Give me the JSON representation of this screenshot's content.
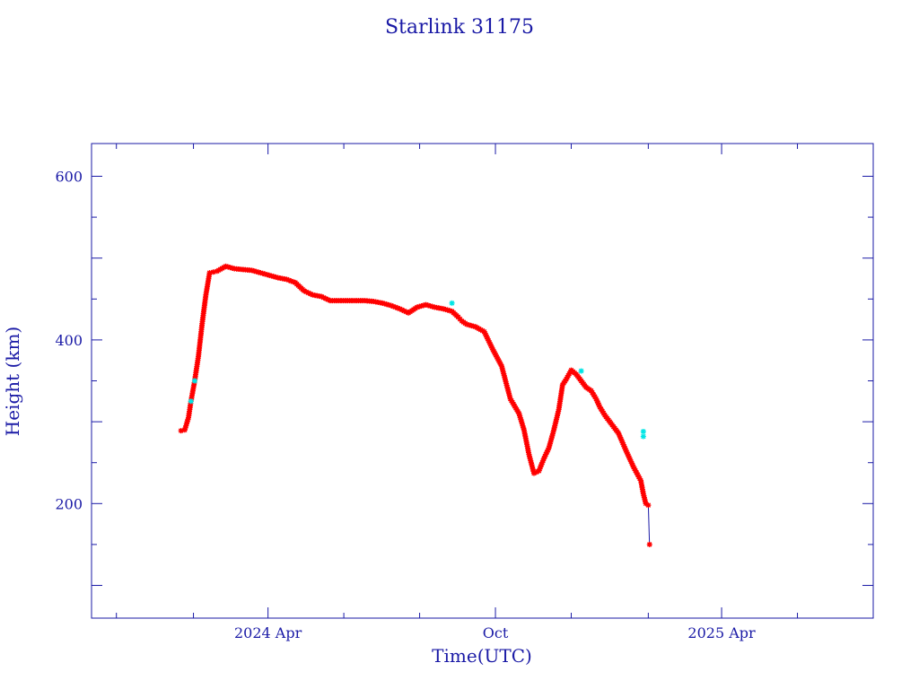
{
  "chart_data": {
    "type": "scatter",
    "title": "Starlink 31175",
    "xlabel": "Time(UTC)",
    "ylabel": "Height (km)",
    "xlim": [
      "2023-11-11",
      "2025-08-01"
    ],
    "ylim": [
      60,
      640
    ],
    "y_ticks": [
      {
        "value": 200,
        "label": "200"
      },
      {
        "value": 400,
        "label": "400"
      },
      {
        "value": 600,
        "label": "600"
      }
    ],
    "x_ticks": [
      {
        "date": "2024-04-01",
        "label": "2024 Apr"
      },
      {
        "date": "2024-10-01",
        "label": "Oct"
      },
      {
        "date": "2025-04-01",
        "label": "2025 Apr"
      }
    ],
    "grid": false,
    "series": [
      {
        "marker_color": "#ff0000",
        "highlight_color": "#00e5e5",
        "line_color": "#1a1aa6",
        "x": [
          "2024-01-22",
          "2024-01-25",
          "2024-01-28",
          "2024-01-30",
          "2024-02-02",
          "2024-02-05",
          "2024-02-08",
          "2024-02-11",
          "2024-02-14",
          "2024-02-17",
          "2024-02-20",
          "2024-02-27",
          "2024-03-05",
          "2024-03-12",
          "2024-03-19",
          "2024-03-26",
          "2024-04-02",
          "2024-04-09",
          "2024-04-16",
          "2024-04-23",
          "2024-04-30",
          "2024-05-07",
          "2024-05-14",
          "2024-05-21",
          "2024-05-28",
          "2024-06-04",
          "2024-06-11",
          "2024-06-18",
          "2024-06-25",
          "2024-07-02",
          "2024-07-09",
          "2024-07-16",
          "2024-07-23",
          "2024-07-30",
          "2024-08-06",
          "2024-08-13",
          "2024-08-20",
          "2024-08-27",
          "2024-09-01",
          "2024-09-04",
          "2024-09-08",
          "2024-09-15",
          "2024-09-22",
          "2024-09-29",
          "2024-10-06",
          "2024-10-13",
          "2024-10-20",
          "2024-10-24",
          "2024-10-28",
          "2024-11-01",
          "2024-11-05",
          "2024-11-09",
          "2024-11-13",
          "2024-11-17",
          "2024-11-21",
          "2024-11-24",
          "2024-11-27",
          "2024-12-01",
          "2024-12-05",
          "2024-12-09",
          "2024-12-13",
          "2024-12-17",
          "2024-12-21",
          "2024-12-24",
          "2024-12-28",
          "2025-01-02",
          "2025-01-08",
          "2025-01-14",
          "2025-01-20",
          "2025-01-26",
          "2025-01-28",
          "2025-01-30",
          "2025-02-01",
          "2025-02-02"
        ],
        "y": [
          289,
          290,
          305,
          325,
          350,
          380,
          420,
          455,
          482,
          483,
          484,
          490,
          487,
          486,
          485,
          482,
          479,
          476,
          474,
          470,
          460,
          455,
          453,
          448,
          448,
          448,
          448,
          448,
          447,
          445,
          442,
          438,
          433,
          440,
          443,
          440,
          438,
          435,
          428,
          423,
          419,
          416,
          410,
          388,
          368,
          328,
          310,
          290,
          260,
          237,
          240,
          255,
          268,
          290,
          315,
          345,
          352,
          363,
          358,
          350,
          342,
          338,
          328,
          318,
          308,
          298,
          286,
          265,
          245,
          228,
          212,
          200,
          198,
          150
        ],
        "highlight_points": [
          {
            "x": "2024-01-30",
            "y": 325
          },
          {
            "x": "2024-02-02",
            "y": 350
          },
          {
            "x": "2024-08-27",
            "y": 445
          },
          {
            "x": "2024-12-09",
            "y": 362
          },
          {
            "x": "2025-01-28",
            "y": 288
          },
          {
            "x": "2025-01-28",
            "y": 282
          }
        ]
      }
    ]
  }
}
